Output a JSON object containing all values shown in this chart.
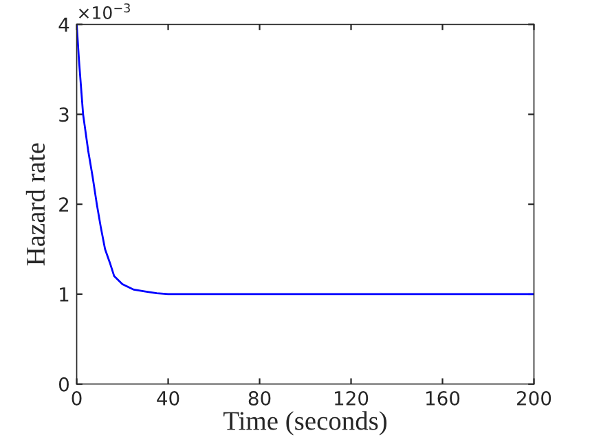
{
  "chart_data": {
    "type": "line",
    "xlabel": "Time (seconds)",
    "ylabel": "Hazard rate",
    "annotations": [
      "×10$^{−3}$"
    ],
    "x": [
      0,
      1,
      2.8,
      5,
      7,
      8.8,
      10.5,
      12.4,
      14.5,
      16.4,
      20,
      25,
      30,
      35,
      40,
      60,
      100,
      150,
      200
    ],
    "series": [
      {
        "color": "#0000ff",
        "values": [
          4.0,
          3.6,
          3.0,
          2.6,
          2.3,
          2.0,
          1.75,
          1.5,
          1.35,
          1.2,
          1.11,
          1.05,
          1.03,
          1.01,
          1.0,
          1.0,
          1.0,
          1.0,
          1.0
        ]
      }
    ],
    "xlim": [
      0,
      200
    ],
    "ylim": [
      0,
      4
    ],
    "xticks": [
      0,
      40,
      80,
      120,
      160,
      200
    ],
    "yticks": [
      0,
      1,
      2,
      3,
      4
    ],
    "grid": false,
    "legend": false,
    "line_style": "solid",
    "marker": "none"
  }
}
